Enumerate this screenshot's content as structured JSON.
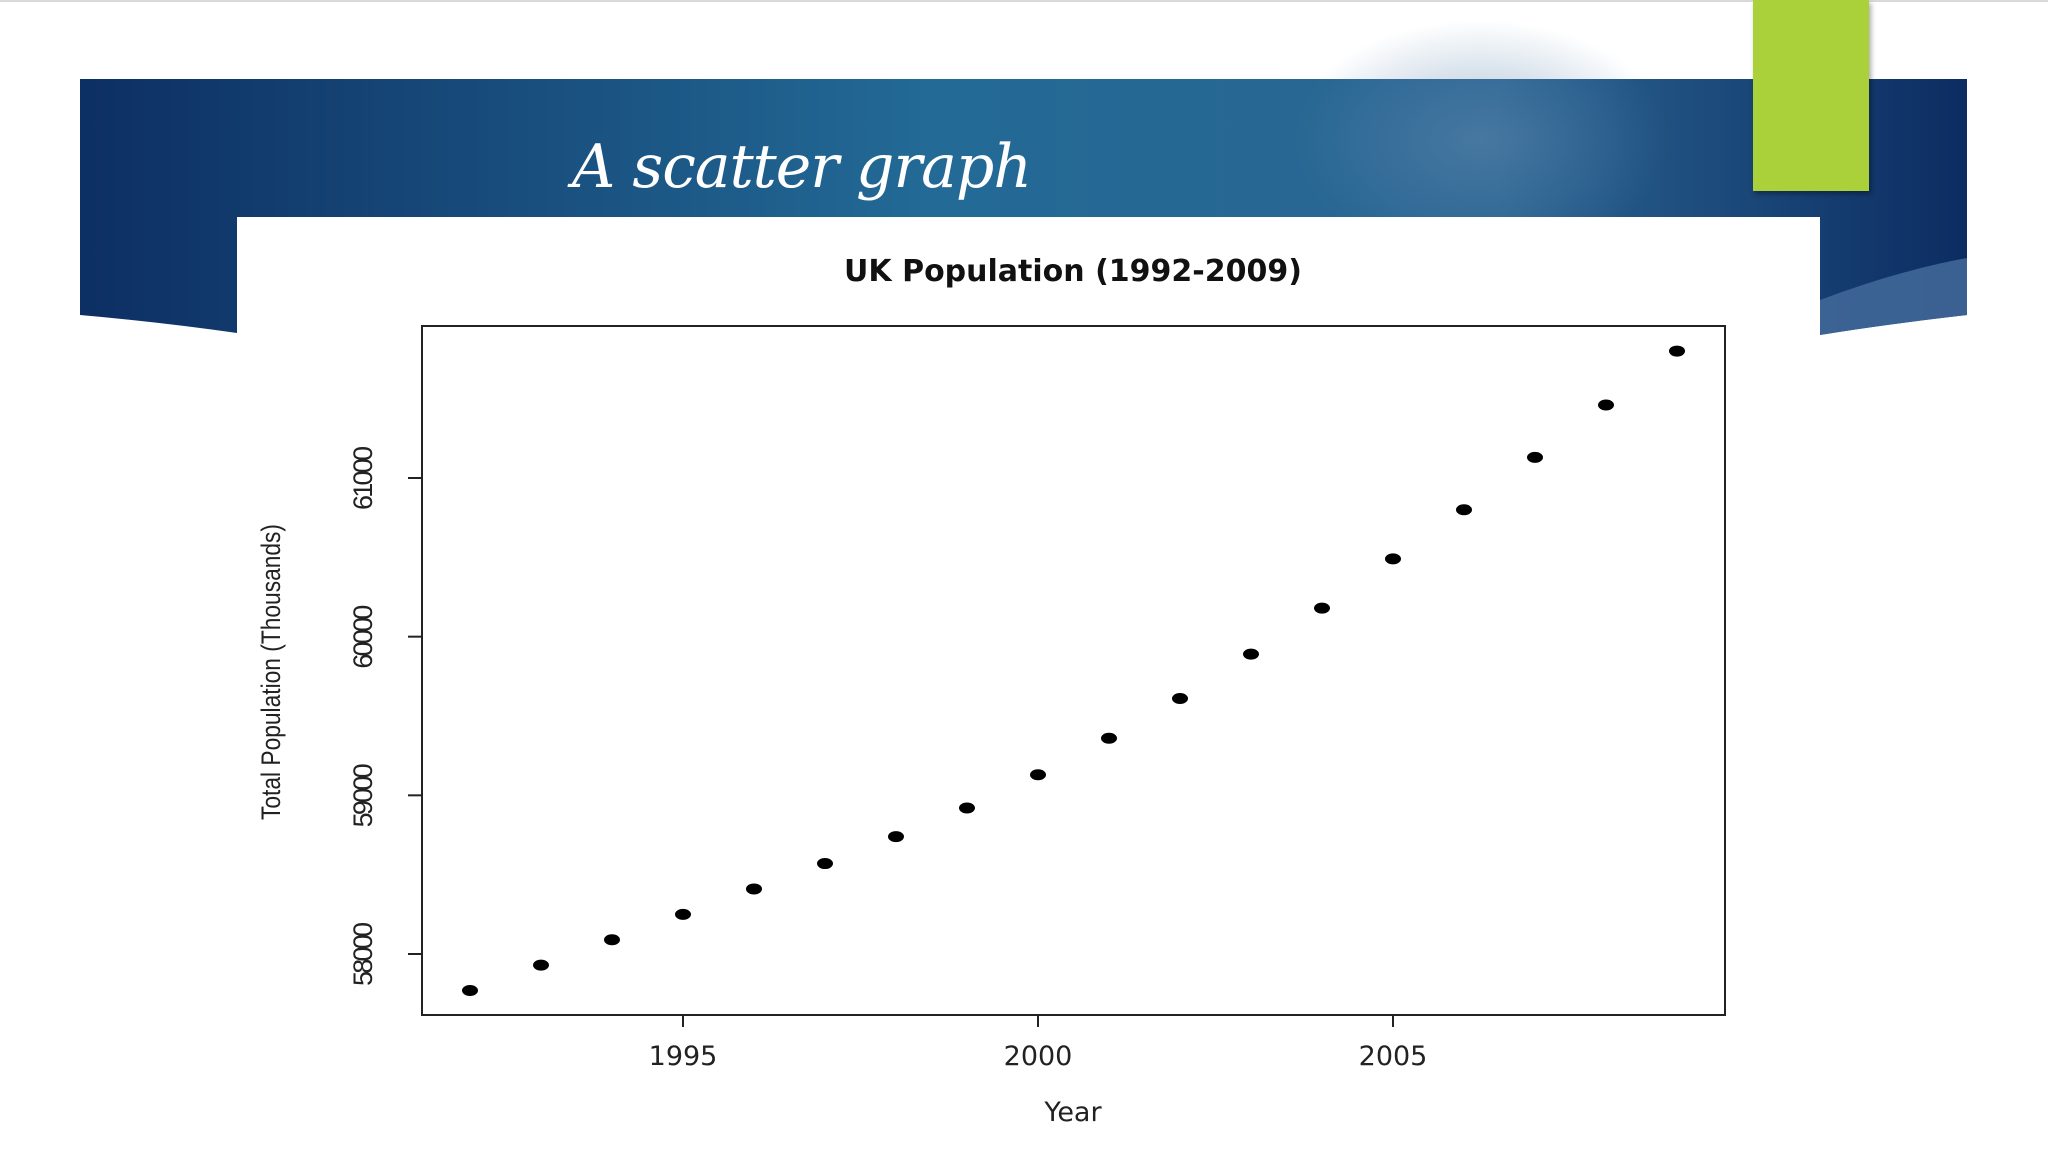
{
  "slide": {
    "title": "A scatter graph",
    "colors": {
      "banner_dark": "#0d2f63",
      "banner_mid": "#236a96",
      "accent": "#abd13a",
      "point": "#000000"
    }
  },
  "chart_data": {
    "type": "scatter",
    "title": "UK Population (1992-2009)",
    "xlabel": "Year",
    "ylabel": "Total Population (Thousands)",
    "x_ticks": [
      "1995",
      "2000",
      "2005"
    ],
    "y_ticks": [
      "58000",
      "59000",
      "60000",
      "61000"
    ],
    "grid": false,
    "x": [
      1992,
      1993,
      1994,
      1995,
      1996,
      1997,
      1998,
      1999,
      2000,
      2001,
      2002,
      2003,
      2004,
      2005,
      2006,
      2007,
      2008,
      2009
    ],
    "y": [
      57770,
      57930,
      58090,
      58250,
      58410,
      58570,
      58740,
      58920,
      59130,
      59360,
      59610,
      59890,
      60180,
      60490,
      60800,
      61130,
      61460,
      61800
    ]
  }
}
